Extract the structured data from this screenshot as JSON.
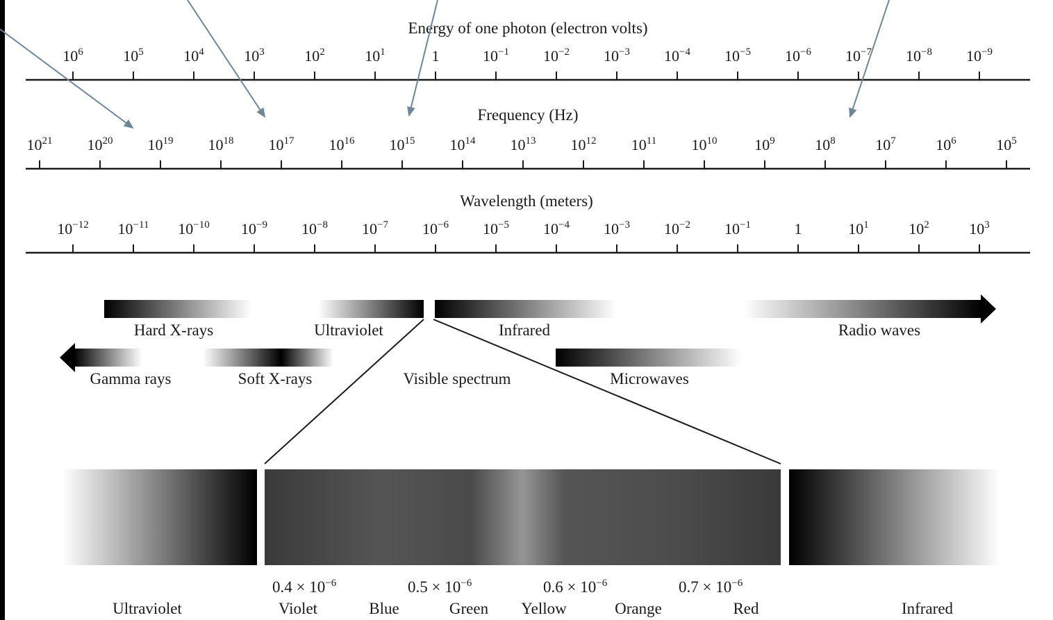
{
  "axes": {
    "energy": {
      "title": "Energy of one photon (electron volts)",
      "ticks": [
        {
          "base": "10",
          "exp": "6"
        },
        {
          "base": "10",
          "exp": "5"
        },
        {
          "base": "10",
          "exp": "4"
        },
        {
          "base": "10",
          "exp": "3"
        },
        {
          "base": "10",
          "exp": "2"
        },
        {
          "base": "10",
          "exp": "1"
        },
        {
          "base": "1",
          "exp": ""
        },
        {
          "base": "10",
          "exp": "−1"
        },
        {
          "base": "10",
          "exp": "−2"
        },
        {
          "base": "10",
          "exp": "−3"
        },
        {
          "base": "10",
          "exp": "−4"
        },
        {
          "base": "10",
          "exp": "−5"
        },
        {
          "base": "10",
          "exp": "−6"
        },
        {
          "base": "10",
          "exp": "−7"
        },
        {
          "base": "10",
          "exp": "−8"
        },
        {
          "base": "10",
          "exp": "−9"
        }
      ]
    },
    "frequency": {
      "title": "Frequency (Hz)",
      "ticks": [
        {
          "base": "10",
          "exp": "21"
        },
        {
          "base": "10",
          "exp": "20"
        },
        {
          "base": "10",
          "exp": "19"
        },
        {
          "base": "10",
          "exp": "18"
        },
        {
          "base": "10",
          "exp": "17"
        },
        {
          "base": "10",
          "exp": "16"
        },
        {
          "base": "10",
          "exp": "15"
        },
        {
          "base": "10",
          "exp": "14"
        },
        {
          "base": "10",
          "exp": "13"
        },
        {
          "base": "10",
          "exp": "12"
        },
        {
          "base": "10",
          "exp": "11"
        },
        {
          "base": "10",
          "exp": "10"
        },
        {
          "base": "10",
          "exp": "9"
        },
        {
          "base": "10",
          "exp": "8"
        },
        {
          "base": "10",
          "exp": "7"
        },
        {
          "base": "10",
          "exp": "6"
        },
        {
          "base": "10",
          "exp": "5"
        }
      ]
    },
    "wavelength": {
      "title": "Wavelength (meters)",
      "ticks": [
        {
          "base": "10",
          "exp": "−12"
        },
        {
          "base": "10",
          "exp": "−11"
        },
        {
          "base": "10",
          "exp": "−10"
        },
        {
          "base": "10",
          "exp": "−9"
        },
        {
          "base": "10",
          "exp": "−8"
        },
        {
          "base": "10",
          "exp": "−7"
        },
        {
          "base": "10",
          "exp": "−6"
        },
        {
          "base": "10",
          "exp": "−5"
        },
        {
          "base": "10",
          "exp": "−4"
        },
        {
          "base": "10",
          "exp": "−3"
        },
        {
          "base": "10",
          "exp": "−2"
        },
        {
          "base": "10",
          "exp": "−1"
        },
        {
          "base": "1",
          "exp": ""
        },
        {
          "base": "10",
          "exp": "1"
        },
        {
          "base": "10",
          "exp": "2"
        },
        {
          "base": "10",
          "exp": "3"
        }
      ]
    }
  },
  "bands": {
    "hard_xrays": "Hard X-rays",
    "ultraviolet": "Ultraviolet",
    "infrared": "Infrared",
    "radio_waves": "Radio waves",
    "gamma_rays": "Gamma rays",
    "soft_xrays": "Soft X-rays",
    "visible_spectrum": "Visible spectrum",
    "microwaves": "Microwaves"
  },
  "visible_detail": {
    "left_label": "Ultraviolet",
    "right_label": "Infrared",
    "wavelengths": [
      {
        "mantissa": "0.4 × 10",
        "exp": "−6"
      },
      {
        "mantissa": "0.5 × 10",
        "exp": "−6"
      },
      {
        "mantissa": "0.6 × 10",
        "exp": "−6"
      },
      {
        "mantissa": "0.7 × 10",
        "exp": "−6"
      }
    ],
    "colors": [
      "Violet",
      "Blue",
      "Green",
      "Yellow",
      "Orange",
      "Red"
    ]
  },
  "colors": {
    "background": "#ffffff",
    "outer_frame": "#000000",
    "ink": "#1a1a1a",
    "pointer_arrows": "#6f8598"
  }
}
